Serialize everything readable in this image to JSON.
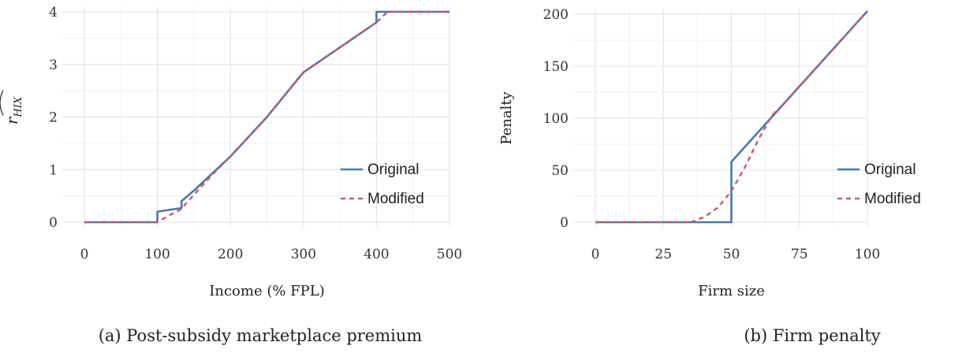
{
  "chart_data": [
    {
      "type": "line",
      "caption": "(a) Post-subsidy marketplace premium",
      "xlabel": "Income (% FPL)",
      "ylabel": "r̂_HIX",
      "xlim": [
        0,
        500
      ],
      "ylim": [
        0,
        4
      ],
      "xticks": [
        "0",
        "100",
        "200",
        "300",
        "400",
        "500"
      ],
      "yticks": [
        "0",
        "1",
        "2",
        "3",
        "4"
      ],
      "grid": true,
      "legend": "bottom-right",
      "series": [
        {
          "name": "Original",
          "color": "#4a78a8",
          "dash": "solid",
          "x": [
            0,
            100,
            100,
            133,
            133,
            150,
            200,
            250,
            300,
            400,
            400,
            500
          ],
          "y": [
            0,
            0,
            0.2,
            0.27,
            0.4,
            0.6,
            1.25,
            2.0,
            2.85,
            3.8,
            4.0,
            4.0
          ]
        },
        {
          "name": "Modified",
          "color": "#c95a6c",
          "dash": "dashed",
          "x": [
            0,
            100,
            115,
            133,
            140,
            175,
            200,
            250,
            300,
            400,
            415,
            500
          ],
          "y": [
            0,
            0,
            0.12,
            0.25,
            0.37,
            0.9,
            1.25,
            2.0,
            2.85,
            3.8,
            4.0,
            4.0
          ]
        }
      ]
    },
    {
      "type": "line",
      "caption": "(b) Firm penalty",
      "xlabel": "Firm size",
      "ylabel": "Penalty",
      "xlim": [
        0,
        100
      ],
      "ylim": [
        0,
        200
      ],
      "xticks": [
        "0",
        "25",
        "50",
        "75",
        "100"
      ],
      "yticks": [
        "0",
        "50",
        "100",
        "150",
        "200"
      ],
      "grid": true,
      "legend": "bottom-right",
      "series": [
        {
          "name": "Original",
          "color": "#4a78a8",
          "dash": "solid",
          "x": [
            0,
            50,
            50,
            100
          ],
          "y": [
            0,
            0,
            58,
            203
          ]
        },
        {
          "name": "Modified",
          "color": "#c95a6c",
          "dash": "dashed",
          "x": [
            0,
            35,
            40,
            45,
            50,
            55,
            60,
            65,
            70,
            75,
            80,
            90,
            100
          ],
          "y": [
            0,
            0,
            5,
            14,
            30,
            53,
            80,
            103,
            116,
            131,
            145,
            174,
            203
          ]
        }
      ]
    }
  ]
}
